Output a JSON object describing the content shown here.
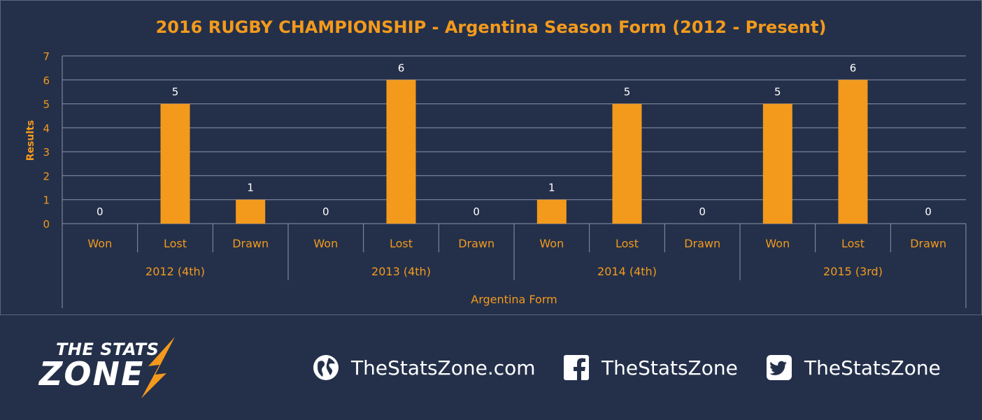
{
  "chart_data": {
    "type": "bar",
    "title": "2016 RUGBY CHAMPIONSHIP - Argentina Season Form (2012 - Present)",
    "xlabel": "Argentina Form",
    "ylabel": "Results",
    "ylim": [
      0,
      7
    ],
    "yticks": [
      0,
      1,
      2,
      3,
      4,
      5,
      6,
      7
    ],
    "grid": true,
    "groups": [
      {
        "label": "2012 (4th)",
        "categories": [
          "Won",
          "Lost",
          "Drawn"
        ],
        "values": [
          0,
          5,
          1
        ]
      },
      {
        "label": "2013 (4th)",
        "categories": [
          "Won",
          "Lost",
          "Drawn"
        ],
        "values": [
          0,
          6,
          0
        ]
      },
      {
        "label": "2014 (4th)",
        "categories": [
          "Won",
          "Lost",
          "Drawn"
        ],
        "values": [
          1,
          5,
          0
        ]
      },
      {
        "label": "2015 (3rd)",
        "categories": [
          "Won",
          "Lost",
          "Drawn"
        ],
        "values": [
          5,
          6,
          0
        ]
      }
    ],
    "colors": {
      "bar": "#f39a1c",
      "text": "#f39a1c",
      "data_label": "#ffffff",
      "grid": "#8a93a8",
      "background": "#24304a"
    }
  },
  "footer": {
    "logo": {
      "line1": "THE STATS",
      "line2": "ZONE"
    },
    "website": {
      "icon": "globe-icon",
      "text": "TheStatsZone.com"
    },
    "facebook": {
      "icon": "facebook-icon",
      "text": "TheStatsZone"
    },
    "twitter": {
      "icon": "twitter-icon",
      "text": "TheStatsZone"
    }
  }
}
